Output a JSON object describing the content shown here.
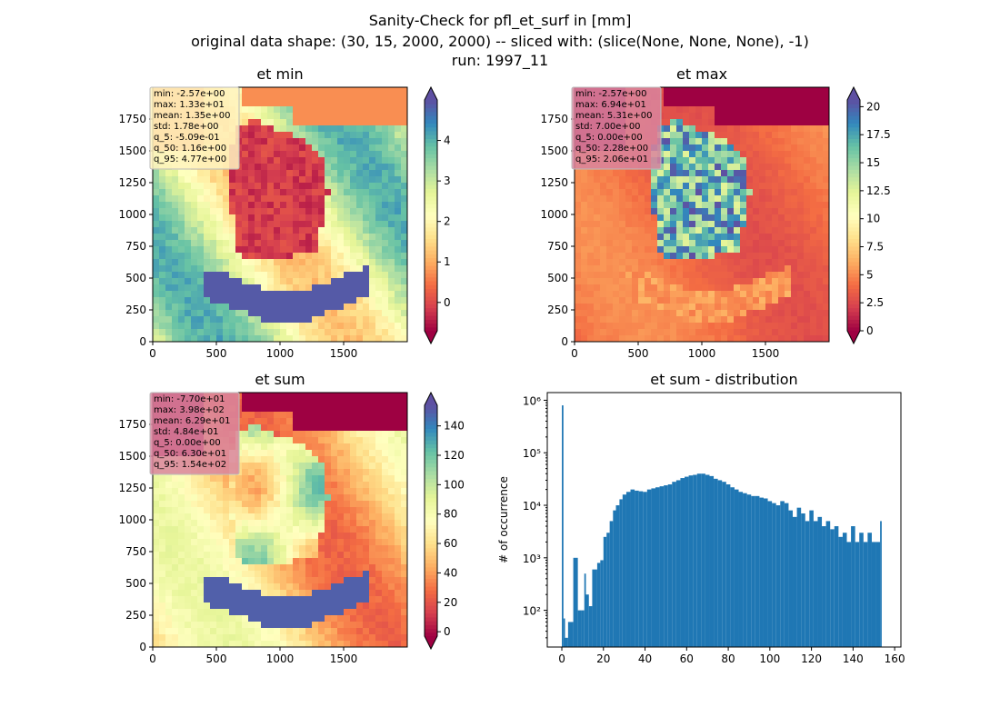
{
  "figure": {
    "suptitle_lines": [
      "Sanity-Check for pfl_et_surf in [mm]",
      "original data shape: (30, 15, 2000, 2000) -- sliced with: (slice(None, None, None), -1)",
      "run: 1997_11"
    ]
  },
  "colormap": {
    "name": "Spectral",
    "stops": [
      "#9e0142",
      "#d53e4f",
      "#f46d43",
      "#fdae61",
      "#fee08b",
      "#ffffbf",
      "#e6f598",
      "#abdda4",
      "#66c2a5",
      "#3288bd",
      "#5e4fa2"
    ]
  },
  "chart_data": [
    {
      "id": "et_min",
      "type": "heatmap",
      "title": "et min",
      "xlabel": "",
      "ylabel": "",
      "xlim": [
        0,
        2000
      ],
      "ylim": [
        0,
        2000
      ],
      "x_ticks": [
        0,
        500,
        1000,
        1500
      ],
      "y_ticks": [
        0,
        250,
        500,
        750,
        1000,
        1250,
        1500,
        1750
      ],
      "colorbar": {
        "vmin": -0.7,
        "vmax": 5.0,
        "ticks": [
          0,
          1,
          2,
          3,
          4
        ],
        "extend": "both"
      },
      "stats": [
        "min: -2.57e+00",
        "max: 1.33e+01",
        "mean: 1.35e+00",
        "std: 1.78e+00",
        "q_5: -5.09e-01",
        "q_50: 1.16e+00",
        "q_95: 4.77e+00"
      ],
      "stats_box_color": "#fff3c0"
    },
    {
      "id": "et_max",
      "type": "heatmap",
      "title": "et max",
      "xlabel": "",
      "ylabel": "",
      "xlim": [
        0,
        2000
      ],
      "ylim": [
        0,
        2000
      ],
      "x_ticks": [
        0,
        500,
        1000,
        1500
      ],
      "y_ticks": [
        0,
        250,
        500,
        750,
        1000,
        1250,
        1500,
        1750
      ],
      "colorbar": {
        "vmin": 0.0,
        "vmax": 20.6,
        "ticks": [
          0.0,
          2.5,
          5.0,
          7.5,
          10.0,
          12.5,
          15.0,
          17.5,
          20.0
        ],
        "extend": "both"
      },
      "stats": [
        "min: -2.57e+00",
        "max: 6.94e+01",
        "mean: 5.31e+00",
        "std: 7.00e+00",
        "q_5: 0.00e+00",
        "q_50: 2.28e+00",
        "q_95: 2.06e+01"
      ],
      "stats_box_color": "#d9859e"
    },
    {
      "id": "et_sum",
      "type": "heatmap",
      "title": "et sum",
      "xlabel": "",
      "ylabel": "",
      "xlim": [
        0,
        2000
      ],
      "ylim": [
        0,
        2000
      ],
      "x_ticks": [
        0,
        500,
        1000,
        1500
      ],
      "y_ticks": [
        0,
        250,
        500,
        750,
        1000,
        1250,
        1500,
        1750
      ],
      "colorbar": {
        "vmin": -3,
        "vmax": 154,
        "ticks": [
          0,
          20,
          40,
          60,
          80,
          100,
          120,
          140
        ],
        "extend": "both"
      },
      "stats": [
        "min: -7.70e+01",
        "max: 3.98e+02",
        "mean: 6.29e+01",
        "std: 4.84e+01",
        "q_5: 0.00e+00",
        "q_50: 6.30e+01",
        "q_95: 1.54e+02"
      ],
      "stats_box_color": "#d9859e"
    },
    {
      "id": "et_sum_dist",
      "type": "bar",
      "title": "et sum - distribution",
      "xlabel": "",
      "ylabel": "# of occurrence",
      "xlim": [
        -7,
        163
      ],
      "y_log": true,
      "ylim": [
        20,
        1400000
      ],
      "x_ticks": [
        0,
        20,
        40,
        60,
        80,
        100,
        120,
        140,
        160
      ],
      "y_ticks": [
        {
          "value": 100,
          "label": "10²"
        },
        {
          "value": 1000,
          "label": "10³"
        },
        {
          "value": 10000,
          "label": "10⁴"
        },
        {
          "value": 100000,
          "label": "10⁵"
        },
        {
          "value": 1000000,
          "label": "10⁶"
        }
      ],
      "bar_color": "#1f77b4",
      "bin_width": 0.77,
      "series": [
        {
          "x": [
            0,
            0.77,
            1.5,
            3,
            5.5,
            7.7,
            9.2,
            10.8,
            11.5,
            13,
            14.6,
            17,
            18.5,
            20,
            21.5,
            23,
            24.6,
            26,
            27.7,
            29.2,
            31,
            33,
            35,
            37,
            39,
            41,
            43,
            45,
            47,
            49,
            51,
            53,
            55,
            57,
            59,
            61,
            63,
            65,
            67,
            69,
            71,
            73,
            75,
            77,
            79,
            81,
            83,
            85,
            87,
            89,
            91,
            93,
            95,
            97,
            99,
            101,
            103,
            105,
            107,
            109,
            111,
            113,
            115,
            117,
            119,
            121,
            123,
            125,
            127,
            129,
            131,
            133,
            135,
            137,
            139,
            141,
            143,
            145,
            147,
            149,
            151,
            153
          ],
          "y": [
            800000,
            70,
            30,
            60,
            1000,
            100,
            100,
            500,
            200,
            120,
            600,
            800,
            900,
            2500,
            3000,
            5000,
            8000,
            10000,
            13000,
            16000,
            18000,
            20000,
            19000,
            18500,
            18000,
            20000,
            21000,
            22000,
            23000,
            24000,
            25000,
            28000,
            30000,
            33000,
            35000,
            37000,
            38000,
            40000,
            40000,
            38000,
            36000,
            32000,
            30000,
            28000,
            25000,
            22000,
            20000,
            18000,
            17000,
            16000,
            15000,
            15000,
            14000,
            13500,
            12000,
            11000,
            10000,
            12000,
            11000,
            8000,
            6000,
            9000,
            7000,
            5000,
            8000,
            5000,
            6000,
            4000,
            5000,
            3500,
            4000,
            2500,
            3000,
            2000,
            4000,
            2000,
            3000,
            2000,
            3000,
            2000,
            2000,
            5000
          ]
        }
      ]
    }
  ]
}
